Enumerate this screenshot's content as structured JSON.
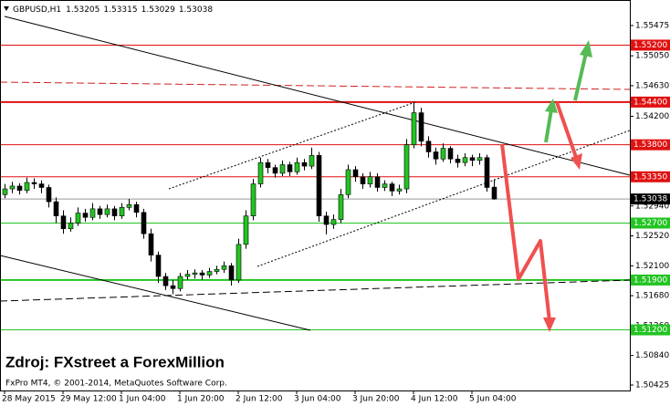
{
  "chart_data": {
    "type": "candlestick",
    "symbol": "GBPUSD,H1",
    "watermark": "Zdroj: FXstreet a ForexMillion",
    "copyright": "FxPro MT4, © 2001-2014, MetaQuotes Software Corp.",
    "bull_color": "#22c422",
    "bear_color": "#000000",
    "candles": [
      [
        1.531,
        1.5325,
        1.5305,
        1.5318
      ],
      [
        1.5318,
        1.5328,
        1.5312,
        1.5322
      ],
      [
        1.5322,
        1.5326,
        1.531,
        1.5316
      ],
      [
        1.5316,
        1.5334,
        1.5312,
        1.5327
      ],
      [
        1.5327,
        1.5333,
        1.5318,
        1.5325
      ],
      [
        1.5325,
        1.533,
        1.5312,
        1.532
      ],
      [
        1.532,
        1.5324,
        1.5292,
        1.53
      ],
      [
        1.53,
        1.5306,
        1.527,
        1.528
      ],
      [
        1.528,
        1.5288,
        1.5255,
        1.5262
      ],
      [
        1.5262,
        1.5278,
        1.5258,
        1.527
      ],
      [
        1.527,
        1.5292,
        1.5266,
        1.5284
      ],
      [
        1.5284,
        1.529,
        1.5272,
        1.5278
      ],
      [
        1.5278,
        1.5298,
        1.5274,
        1.529
      ],
      [
        1.529,
        1.5294,
        1.5276,
        1.5282
      ],
      [
        1.5282,
        1.5296,
        1.5278,
        1.529
      ],
      [
        1.529,
        1.5294,
        1.5274,
        1.528
      ],
      [
        1.528,
        1.5298,
        1.5276,
        1.5292
      ],
      [
        1.5292,
        1.5304,
        1.5288,
        1.5296
      ],
      [
        1.5296,
        1.53,
        1.5278,
        1.5285
      ],
      [
        1.5285,
        1.529,
        1.5248,
        1.5255
      ],
      [
        1.5255,
        1.5262,
        1.5216,
        1.5225
      ],
      [
        1.5225,
        1.523,
        1.5186,
        1.5195
      ],
      [
        1.5195,
        1.52,
        1.5176,
        1.5182
      ],
      [
        1.5182,
        1.519,
        1.517,
        1.5178
      ],
      [
        1.5178,
        1.52,
        1.5174,
        1.5195
      ],
      [
        1.5195,
        1.5204,
        1.519,
        1.5198
      ],
      [
        1.5198,
        1.5205,
        1.5192,
        1.52
      ],
      [
        1.52,
        1.5204,
        1.519,
        1.5197
      ],
      [
        1.5197,
        1.5207,
        1.5193,
        1.5202
      ],
      [
        1.5202,
        1.521,
        1.5198,
        1.5205
      ],
      [
        1.5205,
        1.5216,
        1.52,
        1.521
      ],
      [
        1.521,
        1.5214,
        1.5182,
        1.519
      ],
      [
        1.519,
        1.5248,
        1.5186,
        1.524
      ],
      [
        1.524,
        1.5288,
        1.5234,
        1.528
      ],
      [
        1.528,
        1.5332,
        1.5274,
        1.5325
      ],
      [
        1.5325,
        1.5362,
        1.532,
        1.5355
      ],
      [
        1.5355,
        1.536,
        1.534,
        1.5348
      ],
      [
        1.5348,
        1.5352,
        1.5334,
        1.534
      ],
      [
        1.534,
        1.5358,
        1.5336,
        1.5352
      ],
      [
        1.5352,
        1.5356,
        1.5336,
        1.5342
      ],
      [
        1.5342,
        1.5362,
        1.5338,
        1.5355
      ],
      [
        1.5355,
        1.536,
        1.5344,
        1.535
      ],
      [
        1.535,
        1.5376,
        1.5346,
        1.5365
      ],
      [
        1.5365,
        1.537,
        1.5272,
        1.528
      ],
      [
        1.528,
        1.5286,
        1.5254,
        1.5268
      ],
      [
        1.5268,
        1.5282,
        1.5262,
        1.5275
      ],
      [
        1.5275,
        1.5318,
        1.527,
        1.531
      ],
      [
        1.531,
        1.5352,
        1.5305,
        1.5345
      ],
      [
        1.5345,
        1.535,
        1.5328,
        1.5335
      ],
      [
        1.5335,
        1.534,
        1.5318,
        1.5325
      ],
      [
        1.5325,
        1.5342,
        1.532,
        1.5335
      ],
      [
        1.5335,
        1.534,
        1.5314,
        1.532
      ],
      [
        1.532,
        1.533,
        1.5315,
        1.5325
      ],
      [
        1.5325,
        1.5328,
        1.5308,
        1.5315
      ],
      [
        1.5315,
        1.5324,
        1.531,
        1.5318
      ],
      [
        1.5318,
        1.5388,
        1.5312,
        1.538
      ],
      [
        1.538,
        1.544,
        1.5375,
        1.5425
      ],
      [
        1.5425,
        1.5432,
        1.5378,
        1.5385
      ],
      [
        1.5385,
        1.5392,
        1.5362,
        1.537
      ],
      [
        1.537,
        1.5376,
        1.5352,
        1.536
      ],
      [
        1.536,
        1.5382,
        1.5356,
        1.5375
      ],
      [
        1.5375,
        1.5378,
        1.5354,
        1.536
      ],
      [
        1.536,
        1.5366,
        1.5348,
        1.5355
      ],
      [
        1.5355,
        1.5368,
        1.535,
        1.5362
      ],
      [
        1.5362,
        1.5366,
        1.535,
        1.5358
      ],
      [
        1.5358,
        1.5368,
        1.5352,
        1.5362
      ],
      [
        1.5362,
        1.5366,
        1.5314,
        1.532
      ],
      [
        1.53205,
        1.53315,
        1.53029,
        1.53038
      ]
    ],
    "ylim": [
      1.50348,
      1.55821
    ],
    "yticks": [
      1.55475,
      {
        "value": 1.5505,
        "label": "1.55050"
      },
      {
        "value": 1.5463,
        "label": "1.54630"
      },
      {
        "value": 1.542,
        "label": "1.54200"
      },
      1.53785,
      1.53355,
      {
        "value": 1.5294,
        "label": "1.52940"
      },
      {
        "value": 1.5252,
        "label": "1.52520"
      },
      {
        "value": 1.521,
        "label": "1.52100"
      },
      {
        "value": 1.5168,
        "label": "1.51680"
      },
      {
        "value": 1.5126,
        "label": "1.51260"
      },
      {
        "value": 1.5084,
        "label": "1.50840"
      },
      1.50425
    ],
    "xticks": [
      {
        "value": 0,
        "label": "28 May 2015"
      },
      {
        "value": 8,
        "label": "29 May 12:00"
      },
      {
        "value": 16,
        "label": "1 Jun 04:00"
      },
      {
        "value": 24,
        "label": "1 Jun 20:00"
      },
      {
        "value": 32,
        "label": "2 Jun 12:00"
      },
      {
        "value": 40,
        "label": "3 Jun 04:00"
      },
      {
        "value": 48,
        "label": "3 Jun 20:00"
      },
      {
        "value": 56,
        "label": "4 Jun 12:00"
      },
      {
        "value": 64,
        "label": "5 Jun 04:00"
      }
    ],
    "levels": [
      {
        "value": 1.552,
        "label": "1.55200",
        "color": "#e01010",
        "width": 1
      },
      {
        "value": 1.544,
        "label": "1.54400",
        "color": "#e01010",
        "width": 2
      },
      {
        "value": 1.538,
        "label": "1.53800",
        "color": "#e01010",
        "width": 1
      },
      {
        "value": 1.5335,
        "label": "1.53350",
        "color": "#e01010",
        "width": 1
      },
      {
        "value": 1.527,
        "label": "1.52700",
        "color": "#22c422",
        "width": 1
      },
      {
        "value": 1.519,
        "label": "1.51900",
        "color": "#22c422",
        "width": 2
      },
      {
        "value": 1.512,
        "label": "1.51200",
        "color": "#22c422",
        "width": 1
      }
    ]
  }
}
